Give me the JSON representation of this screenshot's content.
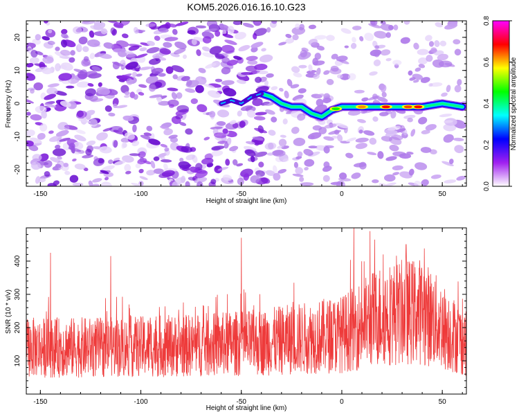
{
  "title": "KOM5.2026.016.16.10.G23",
  "colors": {
    "snr_line": "#ee3a3a",
    "spec_purple": "#8a2be2",
    "frame": "#000000"
  },
  "chart_data": [
    {
      "type": "heatmap",
      "name": "spectrogram",
      "xlabel": "Height of straight line (km)",
      "ylabel": "Frequency (Hz)",
      "xlim": [
        -157,
        62
      ],
      "ylim": [
        -25,
        25
      ],
      "xticks": [
        -150,
        -100,
        -50,
        0,
        50
      ],
      "yticks": [
        -20,
        -10,
        0,
        10,
        20
      ],
      "ridge": {
        "description": "Doppler frequency track (Hz) vs height (km)",
        "x": [
          -60,
          -55,
          -50,
          -45,
          -40,
          -35,
          -30,
          -25,
          -20,
          -15,
          -10,
          -5,
          0,
          10,
          20,
          30,
          40,
          50,
          60
        ],
        "y": [
          0,
          1,
          0,
          2,
          3,
          2,
          0,
          -1,
          -1,
          -3,
          -4,
          -2,
          -1,
          -1,
          -1,
          -1,
          -1,
          0,
          -1
        ]
      },
      "colorbar": {
        "label": "Normalized spectral amplitude",
        "range": [
          0.0,
          0.8
        ],
        "ticks": [
          "0.0",
          "0.2",
          "0.4",
          "0.6",
          "0.8"
        ],
        "stops": [
          "#ffffff",
          "#a020f0",
          "#0000ff",
          "#00ffff",
          "#00ff00",
          "#ffff00",
          "#ff0000",
          "#ff00ff"
        ]
      }
    },
    {
      "type": "line",
      "name": "snr",
      "xlabel": "Height of straight line (km)",
      "ylabel": "SNR (10 * v/v)",
      "xlim": [
        -157,
        62
      ],
      "ylim": [
        0,
        500
      ],
      "xticks": [
        -150,
        -100,
        -50,
        0,
        50
      ],
      "yticks": [
        100,
        200,
        300,
        400
      ],
      "envelope": {
        "description": "approximate mean SNR trend vs height",
        "x": [
          -157,
          -120,
          -80,
          -40,
          0,
          20,
          40,
          62
        ],
        "y": [
          140,
          140,
          145,
          155,
          180,
          240,
          250,
          150
        ]
      },
      "peaks": [
        {
          "x": -145,
          "y": 425
        },
        {
          "x": -115,
          "y": 415
        },
        {
          "x": -50,
          "y": 470
        },
        {
          "x": 6,
          "y": 500
        },
        {
          "x": 14,
          "y": 490
        },
        {
          "x": 32,
          "y": 450
        }
      ]
    }
  ]
}
